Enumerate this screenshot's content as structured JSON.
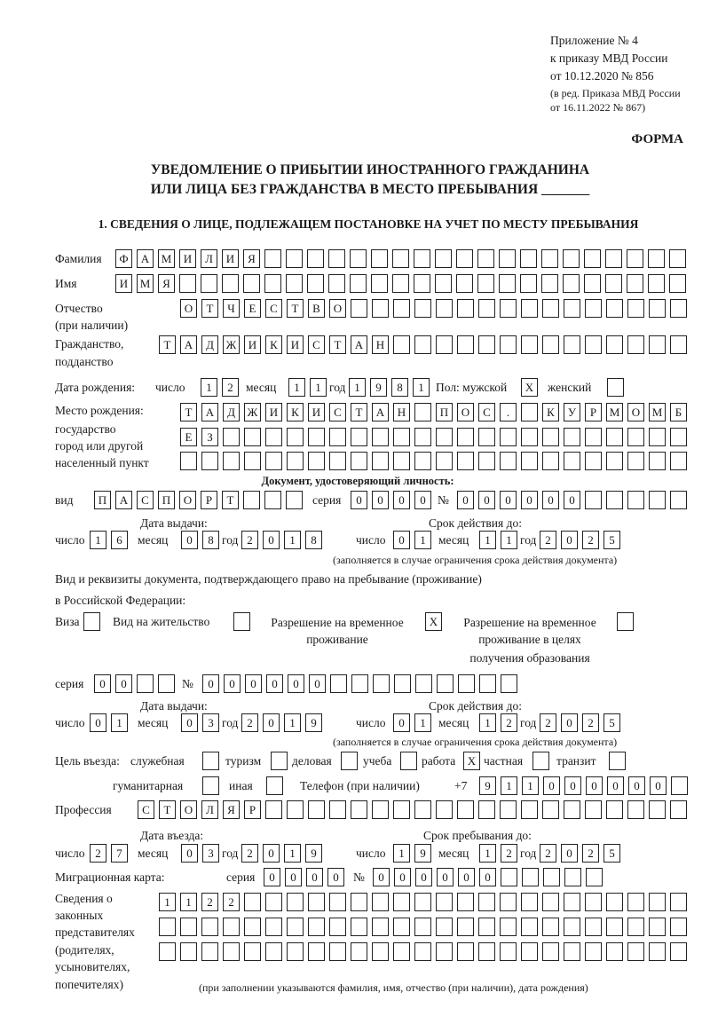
{
  "header": {
    "appendix": [
      "Приложение № 4",
      "к приказу МВД России",
      "от 10.12.2020 № 856"
    ],
    "revision": [
      "(в ред. Приказа МВД России",
      "от 16.11.2022 № 867)"
    ],
    "form_label": "ФОРМА",
    "title": [
      "УВЕДОМЛЕНИЕ О ПРИБЫТИИ ИНОСТРАННОГО ГРАЖДАНИНА",
      "ИЛИ ЛИЦА БЕЗ ГРАЖДАНСТВА В МЕСТО ПРЕБЫВАНИЯ _______"
    ],
    "section1": "1. СВЕДЕНИЯ О ЛИЦЕ, ПОДЛЕЖАЩЕМ ПОСТАНОВКЕ НА УЧЕТ ПО МЕСТУ ПРЕБЫВАНИЯ"
  },
  "person": {
    "surname": {
      "label": "Фамилия",
      "value": "ФАМИЛИЯ                    "
    },
    "name": {
      "label": "Имя",
      "value": "ИМЯ                        "
    },
    "patronymic": {
      "label": [
        "Отчество",
        "(при наличии)"
      ],
      "value": "ОТЧЕСТВО                "
    },
    "citizenship": {
      "label": [
        "Гражданство,",
        "подданство"
      ],
      "value": "ТАДЖИКИСТАН              "
    },
    "birth_date": {
      "label": "Дата рождения:",
      "day_label": "число",
      "day": "12",
      "month_label": "месяц",
      "month": "11",
      "year_label": "год",
      "year": "1981"
    },
    "sex": {
      "label": "Пол: мужской",
      "male": "X",
      "female_label": "женский",
      "female": " "
    },
    "birth_place": {
      "label": [
        "Место рождения:",
        "государство",
        "город или другой",
        "населенный пункт"
      ],
      "rows": [
        "ТАДЖИКИСТАН ПОС. КУРМОМБ",
        "ЕЗ                      ",
        "                        "
      ]
    }
  },
  "id_document": {
    "heading": "Документ, удостоверяющий личность:",
    "kind_label": "вид",
    "kind": "ПАСПОРТ   ",
    "series_label": "серия",
    "series": "0000",
    "number_label": "№",
    "number": "000000     ",
    "issue": {
      "heading": "Дата выдачи:",
      "day_label": "число",
      "day": "16",
      "month_label": "месяц",
      "month": "08",
      "year_label": "год",
      "year": "2018"
    },
    "expiry": {
      "heading": "Срок действия до:",
      "day_label": "число",
      "day": "01",
      "month_label": "месяц",
      "month": "11",
      "year_label": "год",
      "year": "2025"
    },
    "note": "(заполняется в случае ограничения срока действия документа)"
  },
  "stay_document": {
    "heading": [
      "Вид и реквизиты документа, подтверждающего право на пребывание (проживание)",
      "в Российской Федерации:"
    ],
    "visa": {
      "label": "Виза",
      "value": " "
    },
    "residence_permit": {
      "label": "Вид на жительство",
      "value": " "
    },
    "temp_residence": {
      "label": [
        "Разрешение на временное",
        "проживание"
      ],
      "value": "X"
    },
    "temp_residence_edu": {
      "label": [
        "Разрешение на временное",
        "проживание в целях",
        "получения образования"
      ],
      "value": " "
    },
    "series_label": "серия",
    "series": "00  ",
    "number_label": "№",
    "number": "000000         ",
    "issue": {
      "heading": "Дата выдачи:",
      "day_label": "число",
      "day": "01",
      "month_label": "месяц",
      "month": "03",
      "year_label": "год",
      "year": "2019"
    },
    "expiry": {
      "heading": "Срок действия до:",
      "day_label": "число",
      "day": "01",
      "month_label": "месяц",
      "month": "12",
      "year_label": "год",
      "year": "2025"
    },
    "note": "(заполняется в случае ограничения срока действия документа)"
  },
  "purpose": {
    "label": "Цель въезда:",
    "options": [
      {
        "label": "служебная",
        "value": " "
      },
      {
        "label": "туризм",
        "value": " "
      },
      {
        "label": "деловая",
        "value": " "
      },
      {
        "label": "учеба",
        "value": " "
      },
      {
        "label": "работа",
        "value": "X"
      },
      {
        "label": "частная",
        "value": " "
      },
      {
        "label": "транзит",
        "value": " "
      },
      {
        "label": "гуманитарная",
        "value": " "
      },
      {
        "label": "иная",
        "value": " "
      }
    ]
  },
  "phone": {
    "label": "Телефон (при наличии)",
    "prefix": "+7",
    "value": "911000000 "
  },
  "profession": {
    "label": "Профессия",
    "value": "СТОЛЯР                    "
  },
  "entry": {
    "entry_date": {
      "heading": "Дата въезда:",
      "day_label": "число",
      "day": "27",
      "month_label": "месяц",
      "month": "03",
      "year_label": "год",
      "year": "2019"
    },
    "stay_until": {
      "heading": "Срок пребывания до:",
      "day_label": "число",
      "day": "19",
      "month_label": "месяц",
      "month": "12",
      "year_label": "год",
      "year": "2025"
    }
  },
  "migration_card": {
    "label": "Миграционная карта:",
    "series_label": "серия",
    "series": "0000",
    "number_label": "№",
    "number": "000000     "
  },
  "representatives": {
    "label": [
      "Сведения о",
      "законных",
      "представителях",
      "(родителях,",
      "усыновителях,",
      "попечителях)"
    ],
    "rows": [
      "1122                     ",
      "                         ",
      "                         "
    ],
    "note": "(при заполнении указываются фамилия, имя, отчество (при наличии), дата рождения)"
  }
}
